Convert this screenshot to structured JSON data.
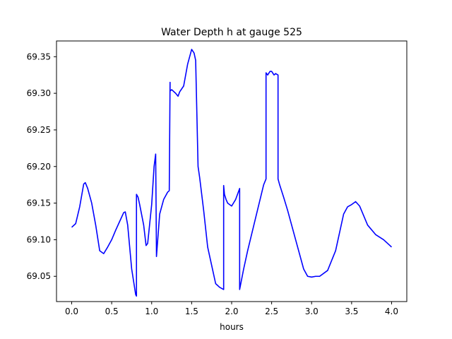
{
  "chart_data": {
    "type": "line",
    "title": "Water Depth h at gauge 525",
    "xlabel": "hours",
    "ylabel": "",
    "xlim": [
      -0.19,
      4.19
    ],
    "ylim": [
      69.0155,
      69.3715
    ],
    "xticks": [
      0.0,
      0.5,
      1.0,
      1.5,
      2.0,
      2.5,
      3.0,
      3.5,
      4.0
    ],
    "xtick_labels": [
      "0.0",
      "0.5",
      "1.0",
      "1.5",
      "2.0",
      "2.5",
      "3.0",
      "3.5",
      "4.0"
    ],
    "yticks": [
      69.05,
      69.1,
      69.15,
      69.2,
      69.25,
      69.3,
      69.35
    ],
    "ytick_labels": [
      "69.05",
      "69.10",
      "69.15",
      "69.20",
      "69.25",
      "69.30",
      "69.35"
    ],
    "grid": false,
    "series": [
      {
        "color": "#0000ff",
        "x": [
          0.0,
          0.05,
          0.1,
          0.15,
          0.17,
          0.2,
          0.25,
          0.3,
          0.35,
          0.4,
          0.45,
          0.5,
          0.55,
          0.6,
          0.65,
          0.67,
          0.7,
          0.75,
          0.8,
          0.81,
          0.81,
          0.83,
          0.85,
          0.9,
          0.93,
          0.95,
          1.0,
          1.03,
          1.05,
          1.06,
          1.06,
          1.1,
          1.15,
          1.2,
          1.22,
          1.23,
          1.23,
          1.25,
          1.3,
          1.33,
          1.35,
          1.4,
          1.45,
          1.5,
          1.53,
          1.55,
          1.58,
          1.58,
          1.6,
          1.65,
          1.7,
          1.75,
          1.8,
          1.85,
          1.9,
          1.9,
          1.91,
          1.93,
          1.95,
          2.0,
          2.05,
          2.1,
          2.1,
          2.15,
          2.2,
          2.3,
          2.4,
          2.43,
          2.43,
          2.45,
          2.48,
          2.5,
          2.53,
          2.55,
          2.58,
          2.58,
          2.6,
          2.65,
          2.7,
          2.8,
          2.9,
          2.95,
          3.0,
          3.05,
          3.1,
          3.2,
          3.3,
          3.4,
          3.45,
          3.5,
          3.55,
          3.6,
          3.7,
          3.8,
          3.9,
          4.0
        ],
        "y": [
          69.117,
          69.122,
          69.145,
          69.176,
          69.178,
          69.17,
          69.15,
          69.12,
          69.085,
          69.081,
          69.09,
          69.1,
          69.113,
          69.125,
          69.137,
          69.138,
          69.12,
          69.06,
          69.025,
          69.023,
          69.162,
          69.158,
          69.148,
          69.12,
          69.092,
          69.095,
          69.148,
          69.2,
          69.217,
          69.077,
          69.077,
          69.135,
          69.155,
          69.165,
          69.167,
          69.315,
          69.303,
          69.305,
          69.3,
          69.296,
          69.302,
          69.31,
          69.34,
          69.36,
          69.355,
          69.345,
          69.2,
          69.2,
          69.185,
          69.14,
          69.09,
          69.065,
          69.04,
          69.035,
          69.032,
          69.174,
          69.162,
          69.155,
          69.15,
          69.146,
          69.155,
          69.17,
          69.032,
          69.06,
          69.085,
          69.13,
          69.175,
          69.183,
          69.328,
          69.325,
          69.33,
          69.33,
          69.325,
          69.327,
          69.325,
          69.183,
          69.175,
          69.158,
          69.14,
          69.1,
          69.06,
          69.05,
          69.049,
          69.05,
          69.05,
          69.058,
          69.085,
          69.135,
          69.145,
          69.148,
          69.152,
          69.146,
          69.12,
          69.107,
          69.1,
          69.09
        ]
      }
    ]
  }
}
